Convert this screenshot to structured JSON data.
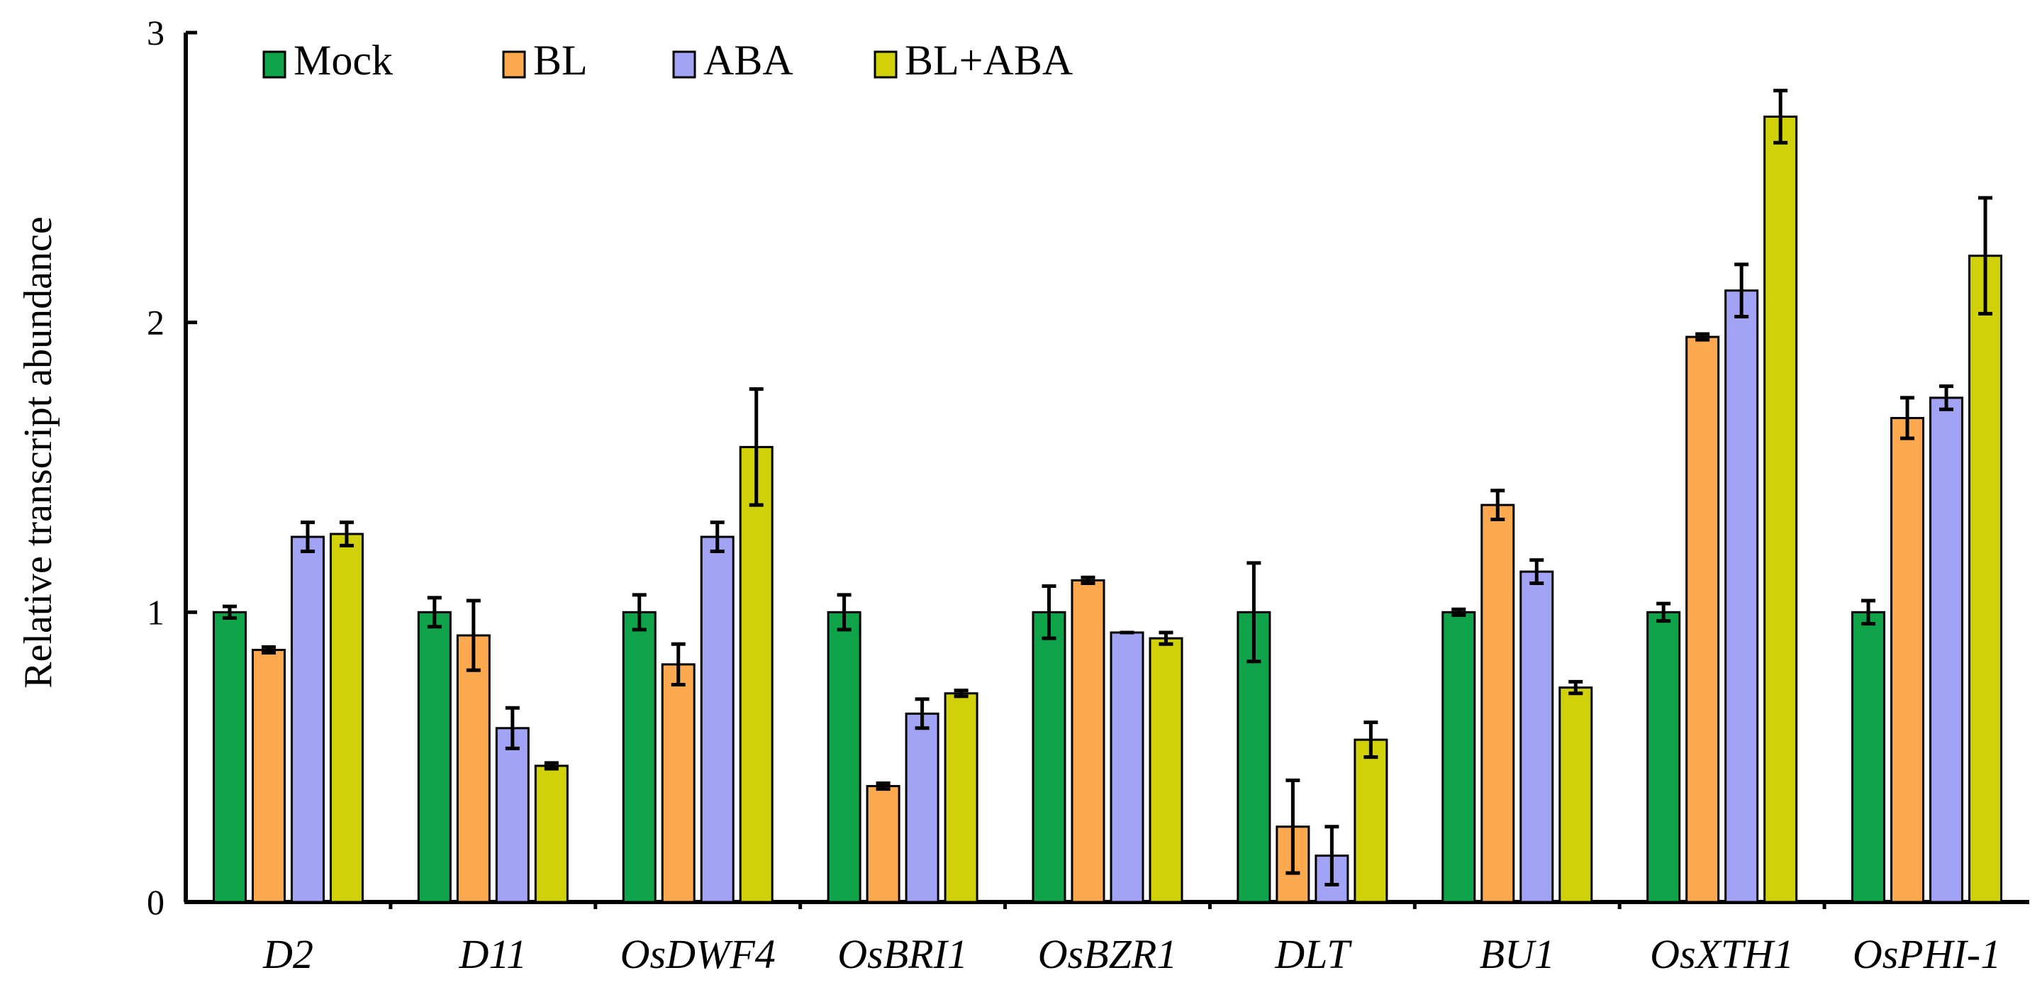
{
  "chart_data": {
    "type": "bar",
    "title": "",
    "xlabel": "",
    "ylabel": "Relative transcript abundance",
    "ylim": [
      0,
      3
    ],
    "yticks": [
      0,
      1,
      2,
      3
    ],
    "grid": false,
    "legend_position": "top-left",
    "categories": [
      "D2",
      "D11",
      "OsDWF4",
      "OsBRI1",
      "OsBZR1",
      "DLT",
      "BU1",
      "OsXTH1",
      "OsPHI-1"
    ],
    "series": [
      {
        "name": "Mock",
        "color": "#0fa34a",
        "values": [
          1.0,
          1.0,
          1.0,
          1.0,
          1.0,
          1.0,
          1.0,
          1.0,
          1.0
        ],
        "errors": [
          0.02,
          0.05,
          0.06,
          0.06,
          0.09,
          0.17,
          0.01,
          0.03,
          0.04
        ]
      },
      {
        "name": "BL",
        "color": "#fca94f",
        "values": [
          0.87,
          0.92,
          0.82,
          0.4,
          1.11,
          0.26,
          1.37,
          1.95,
          1.67
        ],
        "errors": [
          0.01,
          0.12,
          0.07,
          0.01,
          0.01,
          0.16,
          0.05,
          0.01,
          0.07
        ]
      },
      {
        "name": "ABA",
        "color": "#a3a3f5",
        "values": [
          1.26,
          0.6,
          1.26,
          0.65,
          0.93,
          0.16,
          1.14,
          2.11,
          1.74
        ],
        "errors": [
          0.05,
          0.07,
          0.05,
          0.05,
          0.0,
          0.1,
          0.04,
          0.09,
          0.04
        ]
      },
      {
        "name": "BL+ABA",
        "color": "#d1d109",
        "values": [
          1.27,
          0.47,
          1.57,
          0.72,
          0.91,
          0.56,
          0.74,
          2.71,
          2.23
        ],
        "errors": [
          0.04,
          0.01,
          0.2,
          0.01,
          0.02,
          0.06,
          0.02,
          0.09,
          0.2
        ]
      }
    ]
  }
}
